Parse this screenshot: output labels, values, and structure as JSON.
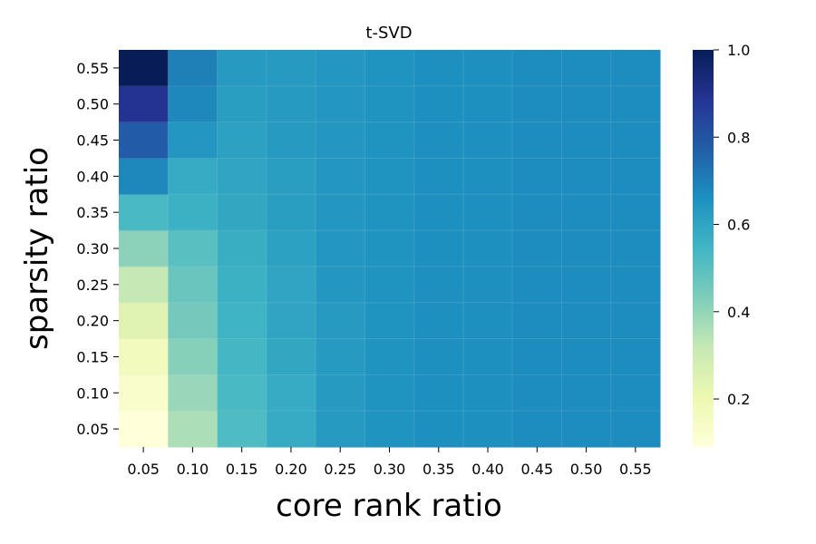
{
  "chart_data": {
    "type": "heatmap",
    "title": "t-SVD",
    "xlabel": "core rank ratio",
    "ylabel": "sparsity ratio",
    "x": [
      "0.05",
      "0.10",
      "0.15",
      "0.20",
      "0.25",
      "0.30",
      "0.35",
      "0.40",
      "0.45",
      "0.50",
      "0.55"
    ],
    "y": [
      "0.05",
      "0.10",
      "0.15",
      "0.20",
      "0.25",
      "0.30",
      "0.35",
      "0.40",
      "0.45",
      "0.50",
      "0.55"
    ],
    "values": [
      [
        0.09,
        0.36,
        0.52,
        0.58,
        0.63,
        0.65,
        0.66,
        0.66,
        0.67,
        0.67,
        0.67
      ],
      [
        0.13,
        0.39,
        0.53,
        0.58,
        0.63,
        0.65,
        0.66,
        0.66,
        0.67,
        0.67,
        0.67
      ],
      [
        0.17,
        0.42,
        0.54,
        0.59,
        0.63,
        0.65,
        0.66,
        0.66,
        0.67,
        0.67,
        0.67
      ],
      [
        0.24,
        0.45,
        0.55,
        0.6,
        0.63,
        0.65,
        0.66,
        0.66,
        0.67,
        0.67,
        0.67
      ],
      [
        0.32,
        0.47,
        0.56,
        0.6,
        0.64,
        0.65,
        0.66,
        0.66,
        0.67,
        0.67,
        0.67
      ],
      [
        0.41,
        0.5,
        0.57,
        0.61,
        0.64,
        0.65,
        0.66,
        0.66,
        0.67,
        0.67,
        0.67
      ],
      [
        0.53,
        0.56,
        0.59,
        0.62,
        0.64,
        0.65,
        0.66,
        0.66,
        0.67,
        0.67,
        0.67
      ],
      [
        0.68,
        0.58,
        0.6,
        0.62,
        0.64,
        0.65,
        0.66,
        0.66,
        0.67,
        0.67,
        0.67
      ],
      [
        0.78,
        0.64,
        0.61,
        0.63,
        0.64,
        0.65,
        0.66,
        0.66,
        0.67,
        0.67,
        0.67
      ],
      [
        0.89,
        0.68,
        0.62,
        0.63,
        0.64,
        0.65,
        0.66,
        0.66,
        0.67,
        0.67,
        0.67
      ],
      [
        1.0,
        0.7,
        0.63,
        0.63,
        0.64,
        0.65,
        0.66,
        0.66,
        0.67,
        0.67,
        0.67
      ]
    ],
    "colorbar": {
      "min": 0.09,
      "max": 1.0,
      "ticks": [
        "0.2",
        "0.4",
        "0.6",
        "0.8",
        "1.0"
      ],
      "colormap": "YlGnBu"
    }
  }
}
